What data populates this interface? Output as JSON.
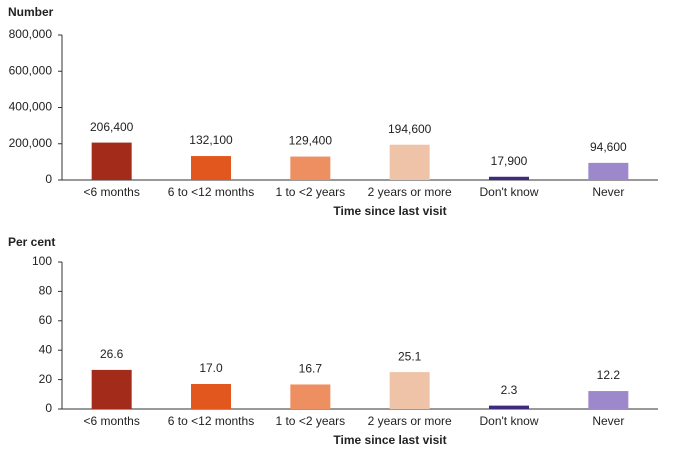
{
  "chart_data": [
    {
      "type": "bar",
      "y_label": "Number",
      "x_label": "Time since last visit",
      "categories": [
        "<6 months",
        "6 to <12 months",
        "1 to <2 years",
        "2 years or more",
        "Don't know",
        "Never"
      ],
      "values": [
        206400,
        132100,
        129400,
        194600,
        17900,
        94600
      ],
      "value_labels": [
        "206,400",
        "132,100",
        "129,400",
        "194,600",
        "17,900",
        "94,600"
      ],
      "colors": [
        "#a22b19",
        "#e2571d",
        "#ee8f62",
        "#efc3a7",
        "#3f2b7d",
        "#9c88ca"
      ],
      "ylim": [
        0,
        800000
      ],
      "yticks": [
        0,
        {
          "value": 200000,
          "label": "200,000"
        },
        {
          "value": 400000,
          "label": "400,000"
        },
        {
          "value": 600000,
          "label": "600,000"
        },
        {
          "value": 800000,
          "label": "800,000"
        }
      ]
    },
    {
      "type": "bar",
      "y_label": "Per cent",
      "x_label": "Time since last visit",
      "categories": [
        "<6 months",
        "6 to <12 months",
        "1 to <2 years",
        "2 years or more",
        "Don't know",
        "Never"
      ],
      "values": [
        26.6,
        17,
        16.7,
        25.1,
        2.3,
        12.2
      ],
      "value_labels": [
        "26.6",
        "17.0",
        "16.7",
        "25.1",
        "2.3",
        "12.2"
      ],
      "colors": [
        "#a22b19",
        "#e2571d",
        "#ee8f62",
        "#efc3a7",
        "#3f2b7d",
        "#9c88ca"
      ],
      "ylim": [
        0,
        100
      ],
      "yticks": [
        0,
        20,
        40,
        60,
        80,
        100
      ]
    }
  ]
}
